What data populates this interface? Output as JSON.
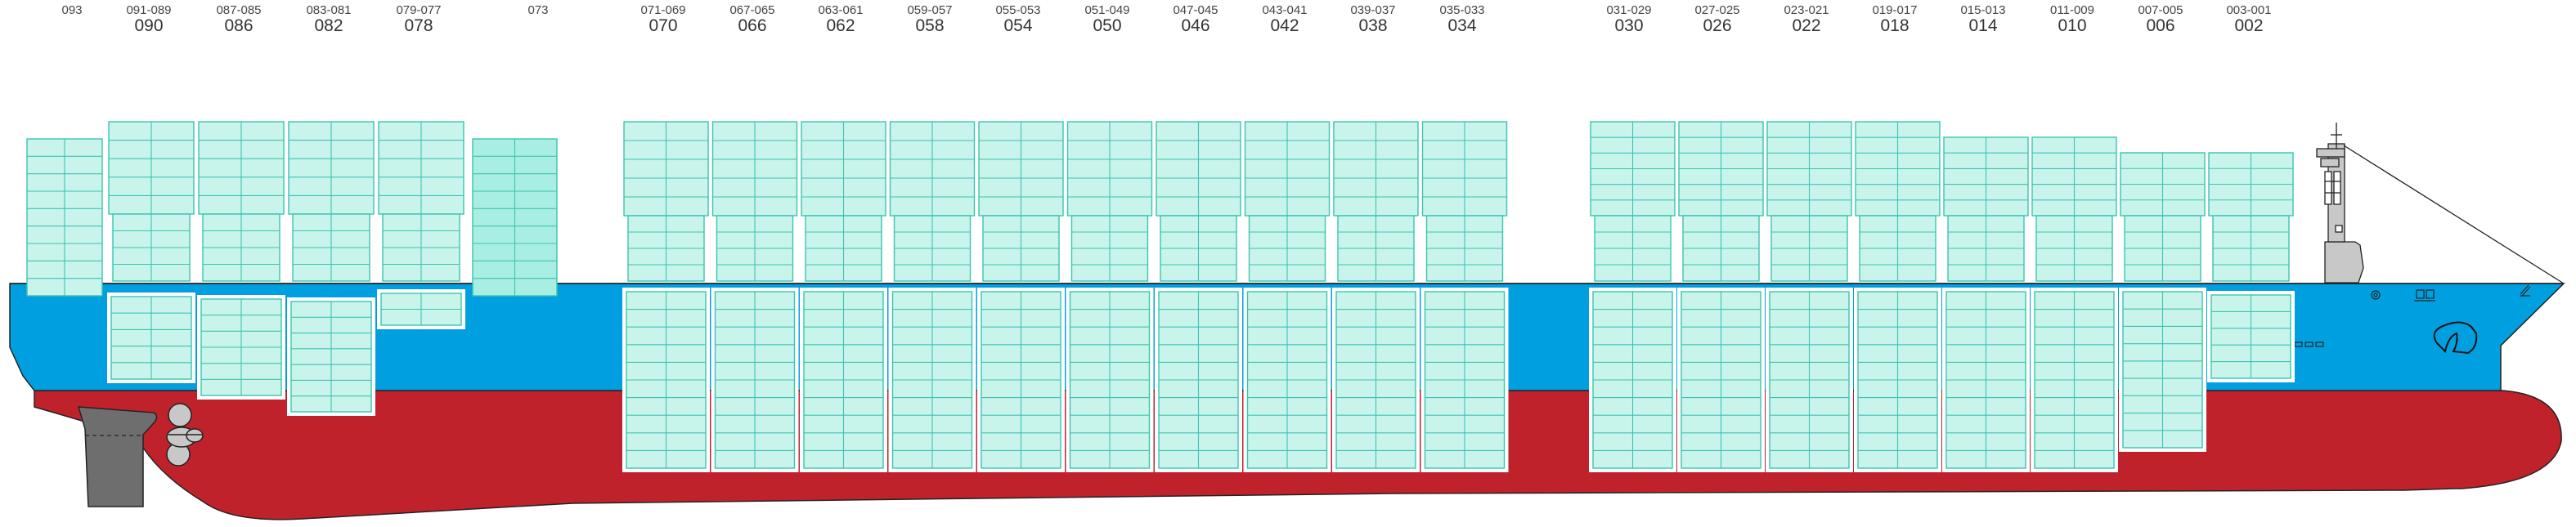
{
  "hull_colors": {
    "upper": "#00a0e0",
    "lower": "#c0222c",
    "container_fill": "#c8f4ec",
    "container_line": "#3cc4b0",
    "house_fill": "#a8eee2",
    "superstructure": "#c8c8c8",
    "rudder": "#6e6e6e"
  },
  "bays": [
    {
      "top": "093",
      "main": ""
    },
    {
      "top": "091-089",
      "main": "090"
    },
    {
      "top": "087-085",
      "main": "086"
    },
    {
      "top": "083-081",
      "main": "082"
    },
    {
      "top": "079-077",
      "main": "078"
    },
    {
      "top": "073",
      "main": ""
    },
    {
      "top": "071-069",
      "main": "070"
    },
    {
      "top": "067-065",
      "main": "066"
    },
    {
      "top": "063-061",
      "main": "062"
    },
    {
      "top": "059-057",
      "main": "058"
    },
    {
      "top": "055-053",
      "main": "054"
    },
    {
      "top": "051-049",
      "main": "050"
    },
    {
      "top": "047-045",
      "main": "046"
    },
    {
      "top": "043-041",
      "main": "042"
    },
    {
      "top": "039-037",
      "main": "038"
    },
    {
      "top": "035-033",
      "main": "034"
    },
    {
      "top": "031-029",
      "main": "030"
    },
    {
      "top": "027-025",
      "main": "026"
    },
    {
      "top": "023-021",
      "main": "022"
    },
    {
      "top": "019-017",
      "main": "018"
    },
    {
      "top": "015-013",
      "main": "014"
    },
    {
      "top": "011-009",
      "main": "010"
    },
    {
      "top": "007-005",
      "main": "006"
    },
    {
      "top": "003-001",
      "main": "002"
    }
  ]
}
